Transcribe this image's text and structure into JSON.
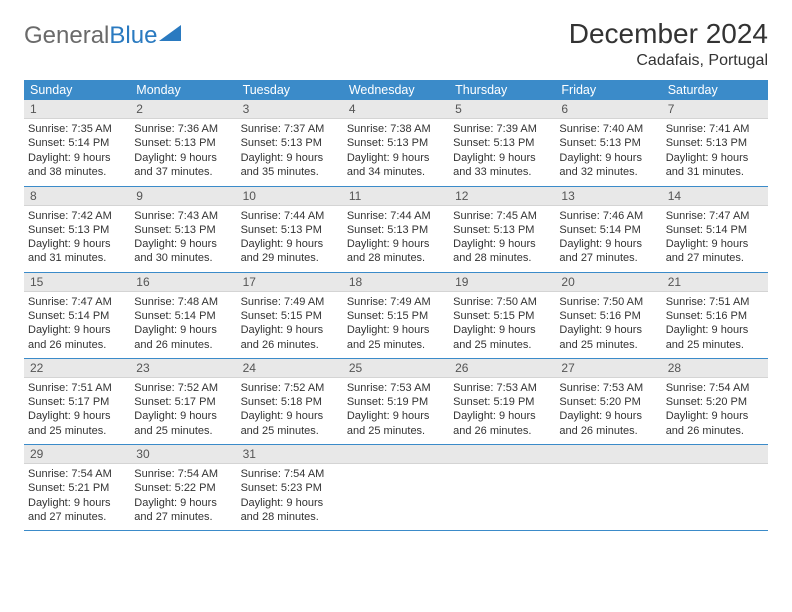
{
  "logo": {
    "text1": "General",
    "text2": "Blue"
  },
  "title": "December 2024",
  "location": "Cadafais, Portugal",
  "colors": {
    "header_bg": "#3b8bc9",
    "header_text": "#ffffff",
    "daynum_bg": "#e8e8e8",
    "border": "#3b8bc9",
    "logo_gray": "#6a6a6a",
    "logo_blue": "#2a7ac0"
  },
  "day_headers": [
    "Sunday",
    "Monday",
    "Tuesday",
    "Wednesday",
    "Thursday",
    "Friday",
    "Saturday"
  ],
  "days": [
    {
      "n": "1",
      "sr": "7:35 AM",
      "ss": "5:14 PM",
      "dl": "9 hours and 38 minutes."
    },
    {
      "n": "2",
      "sr": "7:36 AM",
      "ss": "5:13 PM",
      "dl": "9 hours and 37 minutes."
    },
    {
      "n": "3",
      "sr": "7:37 AM",
      "ss": "5:13 PM",
      "dl": "9 hours and 35 minutes."
    },
    {
      "n": "4",
      "sr": "7:38 AM",
      "ss": "5:13 PM",
      "dl": "9 hours and 34 minutes."
    },
    {
      "n": "5",
      "sr": "7:39 AM",
      "ss": "5:13 PM",
      "dl": "9 hours and 33 minutes."
    },
    {
      "n": "6",
      "sr": "7:40 AM",
      "ss": "5:13 PM",
      "dl": "9 hours and 32 minutes."
    },
    {
      "n": "7",
      "sr": "7:41 AM",
      "ss": "5:13 PM",
      "dl": "9 hours and 31 minutes."
    },
    {
      "n": "8",
      "sr": "7:42 AM",
      "ss": "5:13 PM",
      "dl": "9 hours and 31 minutes."
    },
    {
      "n": "9",
      "sr": "7:43 AM",
      "ss": "5:13 PM",
      "dl": "9 hours and 30 minutes."
    },
    {
      "n": "10",
      "sr": "7:44 AM",
      "ss": "5:13 PM",
      "dl": "9 hours and 29 minutes."
    },
    {
      "n": "11",
      "sr": "7:44 AM",
      "ss": "5:13 PM",
      "dl": "9 hours and 28 minutes."
    },
    {
      "n": "12",
      "sr": "7:45 AM",
      "ss": "5:13 PM",
      "dl": "9 hours and 28 minutes."
    },
    {
      "n": "13",
      "sr": "7:46 AM",
      "ss": "5:14 PM",
      "dl": "9 hours and 27 minutes."
    },
    {
      "n": "14",
      "sr": "7:47 AM",
      "ss": "5:14 PM",
      "dl": "9 hours and 27 minutes."
    },
    {
      "n": "15",
      "sr": "7:47 AM",
      "ss": "5:14 PM",
      "dl": "9 hours and 26 minutes."
    },
    {
      "n": "16",
      "sr": "7:48 AM",
      "ss": "5:14 PM",
      "dl": "9 hours and 26 minutes."
    },
    {
      "n": "17",
      "sr": "7:49 AM",
      "ss": "5:15 PM",
      "dl": "9 hours and 26 minutes."
    },
    {
      "n": "18",
      "sr": "7:49 AM",
      "ss": "5:15 PM",
      "dl": "9 hours and 25 minutes."
    },
    {
      "n": "19",
      "sr": "7:50 AM",
      "ss": "5:15 PM",
      "dl": "9 hours and 25 minutes."
    },
    {
      "n": "20",
      "sr": "7:50 AM",
      "ss": "5:16 PM",
      "dl": "9 hours and 25 minutes."
    },
    {
      "n": "21",
      "sr": "7:51 AM",
      "ss": "5:16 PM",
      "dl": "9 hours and 25 minutes."
    },
    {
      "n": "22",
      "sr": "7:51 AM",
      "ss": "5:17 PM",
      "dl": "9 hours and 25 minutes."
    },
    {
      "n": "23",
      "sr": "7:52 AM",
      "ss": "5:17 PM",
      "dl": "9 hours and 25 minutes."
    },
    {
      "n": "24",
      "sr": "7:52 AM",
      "ss": "5:18 PM",
      "dl": "9 hours and 25 minutes."
    },
    {
      "n": "25",
      "sr": "7:53 AM",
      "ss": "5:19 PM",
      "dl": "9 hours and 25 minutes."
    },
    {
      "n": "26",
      "sr": "7:53 AM",
      "ss": "5:19 PM",
      "dl": "9 hours and 26 minutes."
    },
    {
      "n": "27",
      "sr": "7:53 AM",
      "ss": "5:20 PM",
      "dl": "9 hours and 26 minutes."
    },
    {
      "n": "28",
      "sr": "7:54 AM",
      "ss": "5:20 PM",
      "dl": "9 hours and 26 minutes."
    },
    {
      "n": "29",
      "sr": "7:54 AM",
      "ss": "5:21 PM",
      "dl": "9 hours and 27 minutes."
    },
    {
      "n": "30",
      "sr": "7:54 AM",
      "ss": "5:22 PM",
      "dl": "9 hours and 27 minutes."
    },
    {
      "n": "31",
      "sr": "7:54 AM",
      "ss": "5:23 PM",
      "dl": "9 hours and 28 minutes."
    }
  ],
  "labels": {
    "sunrise": "Sunrise:",
    "sunset": "Sunset:",
    "daylight": "Daylight:"
  },
  "layout": {
    "start_offset": 0,
    "total_cells": 35
  }
}
